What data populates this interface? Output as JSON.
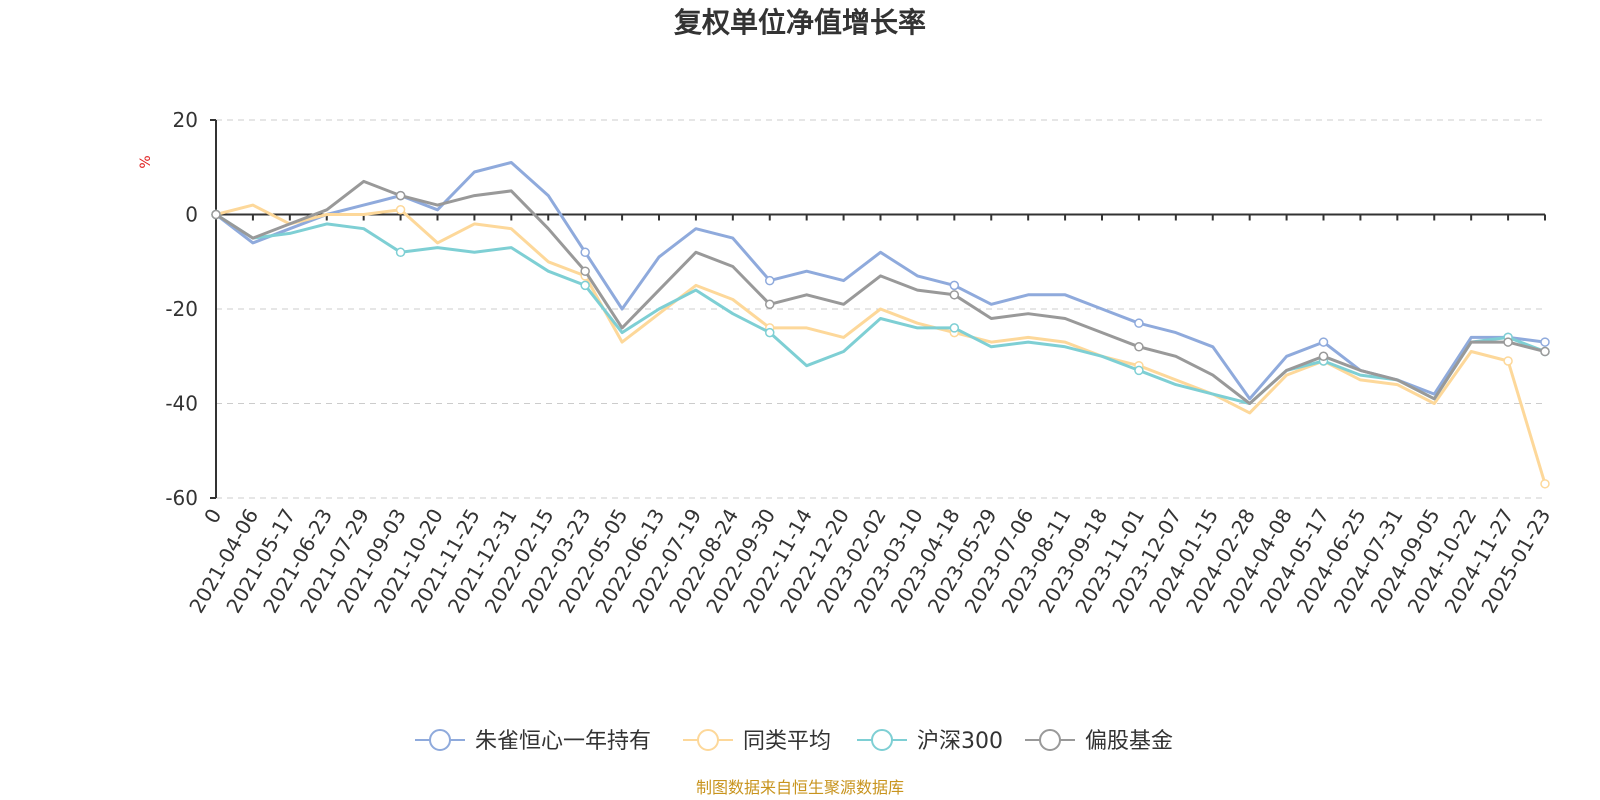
{
  "chart_data": {
    "type": "line",
    "title": "复权单位净值增长率",
    "ylabel": "%",
    "ylim": [
      -60,
      20
    ],
    "yticks": [
      20,
      0,
      -20,
      -40,
      -60
    ],
    "grid": true,
    "legend_position": "bottom",
    "source": "制图数据来自恒生聚源数据库",
    "x": [
      "0",
      "2021-04-06",
      "2021-05-17",
      "2021-06-23",
      "2021-07-29",
      "2021-09-03",
      "2021-10-20",
      "2021-11-25",
      "2021-12-31",
      "2022-02-15",
      "2022-03-23",
      "2022-05-05",
      "2022-06-13",
      "2022-07-19",
      "2022-08-24",
      "2022-09-30",
      "2022-11-14",
      "2022-12-20",
      "2023-02-02",
      "2023-03-10",
      "2023-04-18",
      "2023-05-29",
      "2023-07-06",
      "2023-08-11",
      "2023-09-18",
      "2023-11-01",
      "2023-12-07",
      "2024-01-15",
      "2024-02-28",
      "2024-04-08",
      "2024-05-17",
      "2024-06-25",
      "2024-07-31",
      "2024-09-05",
      "2024-10-22",
      "2024-11-27",
      "2025-01-23"
    ],
    "series": [
      {
        "name": "朱雀恒心一年持有",
        "color": "#8faadc",
        "values": [
          0,
          -6,
          -3,
          0,
          2,
          4,
          1,
          9,
          11,
          4,
          -8,
          -20,
          -9,
          -3,
          -5,
          -14,
          -12,
          -14,
          -8,
          -13,
          -15,
          -19,
          -17,
          -17,
          -20,
          -23,
          -25,
          -28,
          -39,
          -30,
          -27,
          -33,
          -35,
          -38,
          -26,
          -26,
          -27
        ]
      },
      {
        "name": "同类平均",
        "color": "#fdd89a",
        "values": [
          0,
          2,
          -2,
          0,
          0,
          1,
          -6,
          -2,
          -3,
          -10,
          -13,
          -27,
          -21,
          -15,
          -18,
          -24,
          -24,
          -26,
          -20,
          -23,
          -25,
          -27,
          -26,
          -27,
          -30,
          -32,
          -35,
          -38,
          -42,
          -34,
          -31,
          -35,
          -36,
          -40,
          -29,
          -31,
          -57
        ]
      },
      {
        "name": "沪深300",
        "color": "#7ecfd4",
        "values": [
          0,
          -5,
          -4,
          -2,
          -3,
          -8,
          -7,
          -8,
          -7,
          -12,
          -15,
          -25,
          -20,
          -16,
          -21,
          -25,
          -32,
          -29,
          -22,
          -24,
          -24,
          -28,
          -27,
          -28,
          -30,
          -33,
          -36,
          -38,
          -40,
          -33,
          -31,
          -34,
          -35,
          -39,
          -27,
          -26,
          -29
        ]
      },
      {
        "name": "偏股基金",
        "color": "#999999",
        "values": [
          0,
          -5,
          -2,
          1,
          7,
          4,
          2,
          4,
          5,
          -3,
          -12,
          -24,
          -16,
          -8,
          -11,
          -19,
          -17,
          -19,
          -13,
          -16,
          -17,
          -22,
          -21,
          -22,
          -25,
          -28,
          -30,
          -34,
          -40,
          -33,
          -30,
          -33,
          -35,
          -39,
          -27,
          -27,
          -29
        ]
      }
    ]
  }
}
